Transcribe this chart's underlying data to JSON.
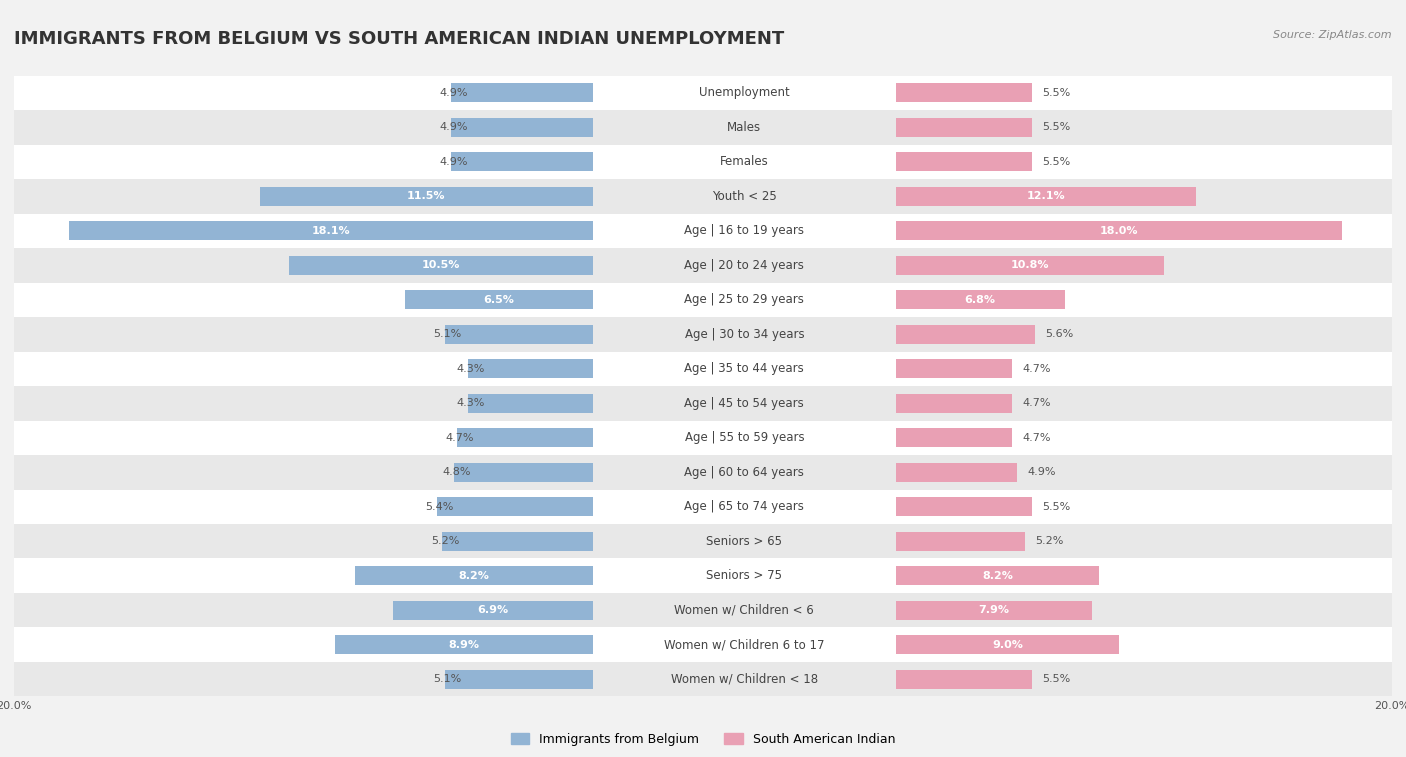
{
  "title": "IMMIGRANTS FROM BELGIUM VS SOUTH AMERICAN INDIAN UNEMPLOYMENT",
  "source": "Source: ZipAtlas.com",
  "categories": [
    "Unemployment",
    "Males",
    "Females",
    "Youth < 25",
    "Age | 16 to 19 years",
    "Age | 20 to 24 years",
    "Age | 25 to 29 years",
    "Age | 30 to 34 years",
    "Age | 35 to 44 years",
    "Age | 45 to 54 years",
    "Age | 55 to 59 years",
    "Age | 60 to 64 years",
    "Age | 65 to 74 years",
    "Seniors > 65",
    "Seniors > 75",
    "Women w/ Children < 6",
    "Women w/ Children 6 to 17",
    "Women w/ Children < 18"
  ],
  "belgium_values": [
    4.9,
    4.9,
    4.9,
    11.5,
    18.1,
    10.5,
    6.5,
    5.1,
    4.3,
    4.3,
    4.7,
    4.8,
    5.4,
    5.2,
    8.2,
    6.9,
    8.9,
    5.1
  ],
  "indian_values": [
    5.5,
    5.5,
    5.5,
    12.1,
    18.0,
    10.8,
    6.8,
    5.6,
    4.7,
    4.7,
    4.7,
    4.9,
    5.5,
    5.2,
    8.2,
    7.9,
    9.0,
    5.5
  ],
  "belgium_color": "#92b4d4",
  "indian_color": "#e9a0b4",
  "belgium_label": "Immigrants from Belgium",
  "indian_label": "South American Indian",
  "axis_max": 20.0,
  "bg_color": "#f2f2f2",
  "row_color_odd": "#ffffff",
  "row_color_even": "#e8e8e8",
  "title_fontsize": 13,
  "cat_fontsize": 8.5,
  "val_fontsize": 8.0,
  "legend_fontsize": 9,
  "bar_height": 0.55,
  "inside_threshold": 6.5
}
